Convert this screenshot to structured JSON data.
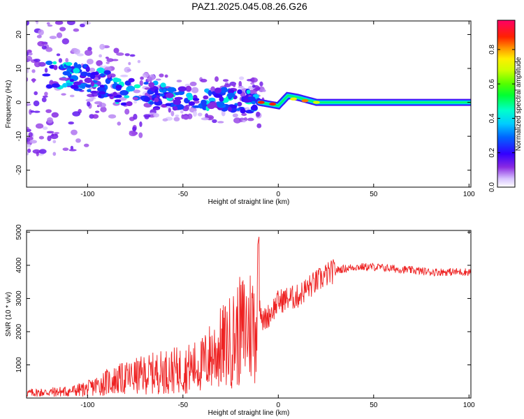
{
  "title": "PAZ1.2025.045.08.26.G26",
  "colors": {
    "snr_line": "#ee2222",
    "axis": "#000000",
    "spectrogram_bg": "#ffffff"
  },
  "chart_data": [
    {
      "type": "heatmap",
      "xlabel": "Height of straight line (km)",
      "ylabel": "Frequency (Hz)",
      "xlim": [
        -132,
        101
      ],
      "ylim": [
        -25,
        24
      ],
      "xticks": [
        -100,
        -50,
        0,
        50,
        100
      ],
      "yticks": [
        -20,
        -10,
        0,
        10,
        20
      ],
      "colorbar": {
        "label": "Normalized spectral amplitude",
        "range": [
          0.0,
          0.97
        ],
        "ticks": [
          0.0,
          0.2,
          0.4,
          0.6,
          0.8
        ],
        "colormap": "rainbow (purple→blue→cyan→green→yellow→red→magenta)"
      },
      "ridge": [
        {
          "x": -125,
          "f": 8
        },
        {
          "x": -110,
          "f": 8
        },
        {
          "x": -100,
          "f": 7
        },
        {
          "x": -90,
          "f": 5
        },
        {
          "x": -80,
          "f": 3
        },
        {
          "x": -70,
          "f": 2
        },
        {
          "x": -60,
          "f": 1.5
        },
        {
          "x": -50,
          "f": 1
        },
        {
          "x": -40,
          "f": 1
        },
        {
          "x": -30,
          "f": 1
        },
        {
          "x": -20,
          "f": 0.5
        },
        {
          "x": -10,
          "f": 0
        },
        {
          "x": 0,
          "f": -1
        },
        {
          "x": 5,
          "f": 2
        },
        {
          "x": 10,
          "f": 1.5
        },
        {
          "x": 20,
          "f": 0
        },
        {
          "x": 30,
          "f": 0
        },
        {
          "x": 50,
          "f": 0
        },
        {
          "x": 75,
          "f": 0
        },
        {
          "x": 100,
          "f": 0
        }
      ]
    },
    {
      "type": "line",
      "xlabel": "Height of straight line (km)",
      "ylabel": "SNR (10 * v/v)",
      "xlim": [
        -132,
        101
      ],
      "ylim": [
        0,
        5050
      ],
      "xticks": [
        -100,
        -50,
        0,
        50,
        100
      ],
      "yticks": [
        1000,
        2000,
        3000,
        4000,
        5000
      ],
      "series": [
        {
          "envelope_x": [
            -132,
            -110,
            -100,
            -90,
            -80,
            -70,
            -60,
            -50,
            -40,
            -35,
            -30,
            -25,
            -20,
            -15,
            -12,
            -10,
            -8,
            -5,
            0,
            5,
            10,
            15,
            20,
            25,
            30,
            35,
            40,
            50,
            60,
            70,
            80,
            90,
            100
          ],
          "envelope_y": [
            150,
            200,
            280,
            480,
            600,
            700,
            800,
            850,
            1000,
            1300,
            1500,
            1700,
            2000,
            2200,
            2300,
            3000,
            2300,
            2500,
            2900,
            3000,
            3050,
            3300,
            3500,
            3700,
            3850,
            3900,
            3950,
            3950,
            3900,
            3850,
            3800,
            3800,
            3800
          ]
        }
      ]
    }
  ]
}
